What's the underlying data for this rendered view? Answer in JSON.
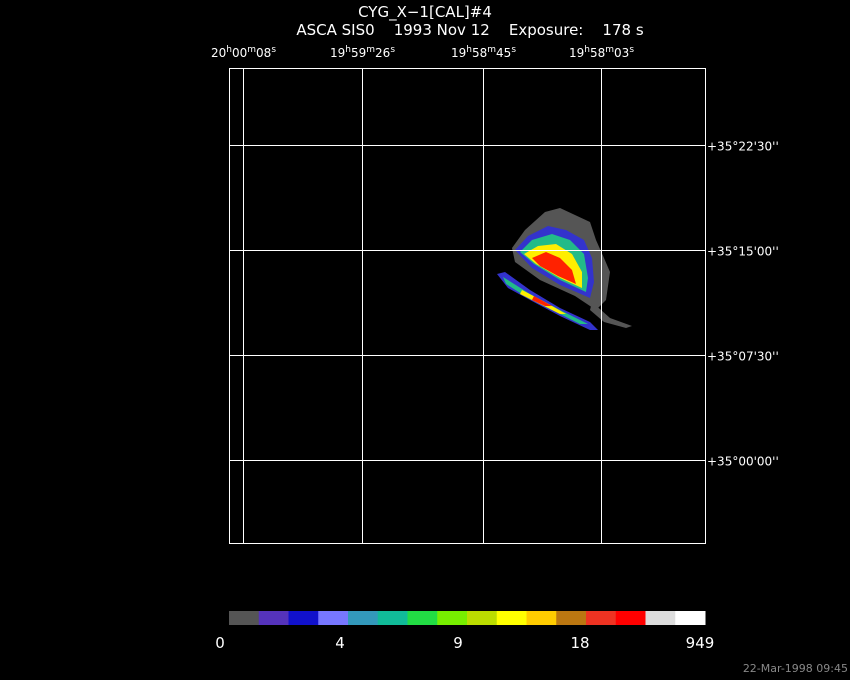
{
  "header": {
    "title": "CYG_X−1[CAL]#4",
    "subtitle": "ASCA SIS0    1993 Nov 12    Exposure:    178 s"
  },
  "ra_labels": [
    "20h00m08s",
    "19h59m26s",
    "19h58m45s",
    "19h58m03s"
  ],
  "dec_labels": [
    "+35°22'30''",
    "+35°15'00''",
    "+35°07'30''",
    "+35°00'00''"
  ],
  "colorbar": {
    "labels": [
      "0",
      "4",
      "9",
      "18",
      "949"
    ],
    "colors": [
      "#555555",
      "#5533bb",
      "#1111cc",
      "#7777ff",
      "#3399bb",
      "#11bb99",
      "#22dd44",
      "#77ee00",
      "#bbdd00",
      "#ffff00",
      "#ffcc00",
      "#bb7711",
      "#ee3322",
      "#ff0000",
      "#dddddd",
      "#ffffff"
    ]
  },
  "timestamp": "22-Mar-1998 09:45"
}
